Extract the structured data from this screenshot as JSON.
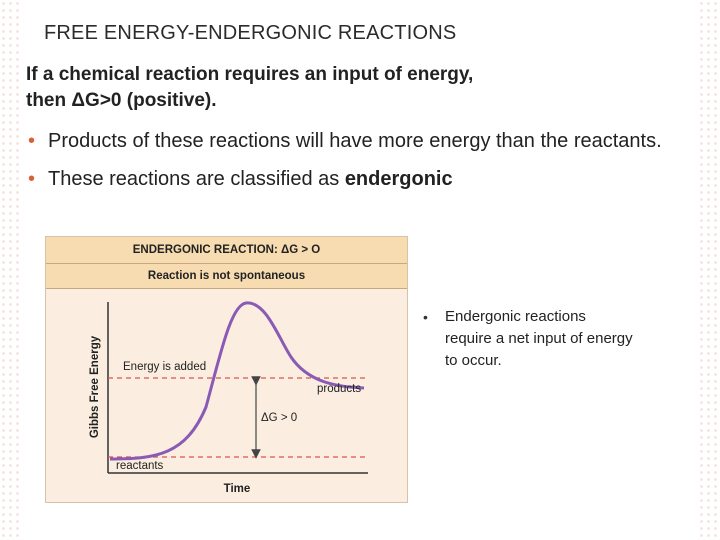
{
  "slide": {
    "title": "FREE ENERGY-ENDERGONIC REACTIONS",
    "intro_line1": "If a chemical reaction requires an input of energy,",
    "intro_line2": "then ΔG>0 (positive).",
    "bullets": [
      {
        "text": "Products of these reactions will have more energy than the reactants."
      },
      {
        "prefix": "These reactions are classified as ",
        "emphasis": "endergonic"
      }
    ],
    "side_note": "Endergonic reactions require a net input of energy to occur.",
    "accent_color": "#d9603b"
  },
  "figure": {
    "header": "ENDERGONIC REACTION: ΔG > O",
    "subheader": "Reaction is not spontaneous",
    "ylabel": "Gibbs Free Energy",
    "xlabel": "Time",
    "label_energy_added": "Energy is added",
    "label_products": "products",
    "label_reactants": "reactants",
    "label_delta": "ΔG > 0",
    "curve_color": "#8a5bb5",
    "dashed_color": "#d9534f",
    "background_color": "#fbeee0",
    "header_color": "#f7dcb2"
  }
}
